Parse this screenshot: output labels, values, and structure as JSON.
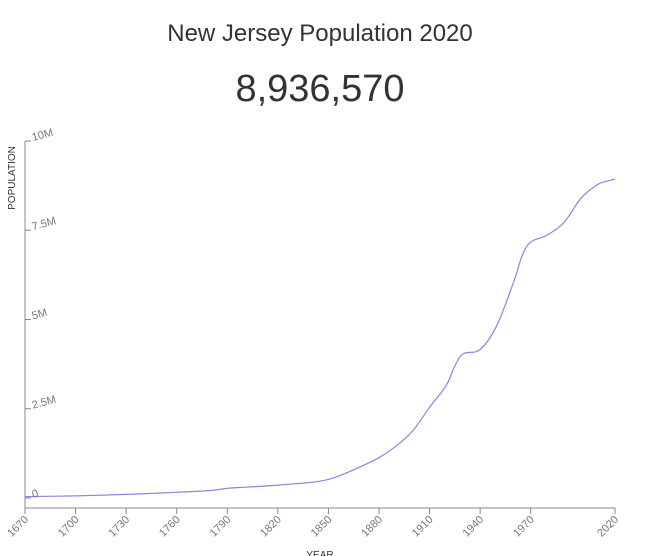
{
  "header": {
    "title": "New Jersey Population 2020",
    "population_value": "8,936,570"
  },
  "colors": {
    "line": "#8a84e2",
    "axis": "#888888",
    "text": "#333333"
  },
  "chart_data": {
    "type": "line",
    "title": "New Jersey Population 2020",
    "xlabel": "YEAR",
    "ylabel": "POPULATION",
    "xlim": [
      1670,
      2020
    ],
    "ylim": [
      0,
      10000000
    ],
    "x_ticks": [
      1670,
      1700,
      1730,
      1760,
      1790,
      1820,
      1850,
      1880,
      1910,
      1940,
      1970,
      2020
    ],
    "y_ticks": [
      {
        "value": 0,
        "label": "0"
      },
      {
        "value": 2500000,
        "label": "2.5M"
      },
      {
        "value": 5000000,
        "label": "5M"
      },
      {
        "value": 7500000,
        "label": "7.5M"
      },
      {
        "value": 10000000,
        "label": "10M"
      }
    ],
    "grid": false,
    "series": [
      {
        "x": [
          1670,
          1700,
          1730,
          1760,
          1780,
          1790,
          1800,
          1820,
          1840,
          1850,
          1860,
          1870,
          1880,
          1890,
          1900,
          1910,
          1920,
          1925,
          1930,
          1940,
          1950,
          1960,
          1965,
          1970,
          1980,
          1990,
          2000,
          2010,
          2015,
          2020
        ],
        "y": [
          40000,
          60000,
          100000,
          160000,
          210000,
          270000,
          300000,
          360000,
          440000,
          520000,
          690000,
          900000,
          1130000,
          1450000,
          1880000,
          2540000,
          3160000,
          3700000,
          4040000,
          4160000,
          4840000,
          6070000,
          6800000,
          7170000,
          7370000,
          7730000,
          8410000,
          8790000,
          8870000,
          8936570
        ]
      }
    ]
  }
}
